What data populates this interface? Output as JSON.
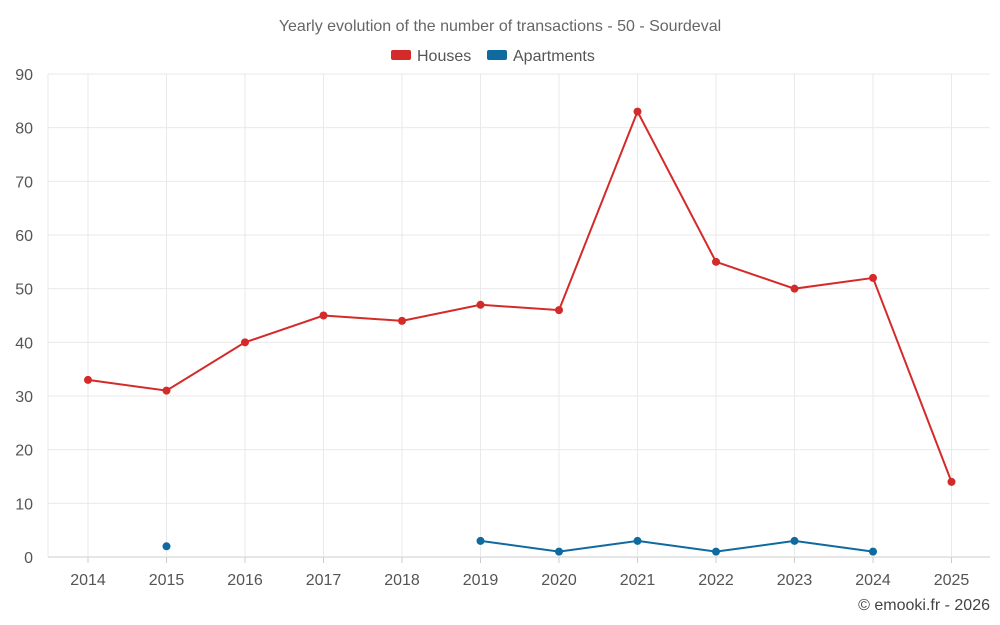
{
  "chart_data": {
    "type": "line",
    "title": "Yearly evolution of the number of transactions - 50 - Sourdeval",
    "categories": [
      "2014",
      "2015",
      "2016",
      "2017",
      "2018",
      "2019",
      "2020",
      "2021",
      "2022",
      "2023",
      "2024",
      "2025"
    ],
    "ylim": [
      0,
      90
    ],
    "yticks": [
      0,
      10,
      20,
      30,
      40,
      50,
      60,
      70,
      80,
      90
    ],
    "grid": true,
    "legend_position": "top-center",
    "series": [
      {
        "name": "Houses",
        "color": "#d42a2a",
        "values": [
          33,
          31,
          40,
          45,
          44,
          47,
          46,
          83,
          55,
          50,
          52,
          14
        ]
      },
      {
        "name": "Apartments",
        "color": "#0f6aa0",
        "values": [
          null,
          2,
          null,
          null,
          null,
          3,
          1,
          3,
          1,
          3,
          1,
          null
        ]
      }
    ],
    "credit": "© emooki.fr - 2026"
  }
}
